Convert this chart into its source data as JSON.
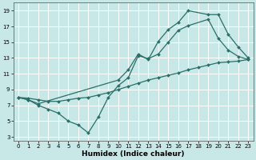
{
  "title": "",
  "xlabel": "Humidex (Indice chaleur)",
  "bg_color": "#c8e8e8",
  "grid_color": "#ffffff",
  "line_color": "#2a6e68",
  "xlim": [
    -0.5,
    23.5
  ],
  "ylim": [
    2.5,
    20
  ],
  "xticks": [
    0,
    1,
    2,
    3,
    4,
    5,
    6,
    7,
    8,
    9,
    10,
    11,
    12,
    13,
    14,
    15,
    16,
    17,
    18,
    19,
    20,
    21,
    22,
    23
  ],
  "yticks": [
    3,
    5,
    7,
    9,
    11,
    13,
    15,
    17,
    19
  ],
  "line1_x": [
    0,
    1,
    2,
    10,
    11,
    12,
    13,
    14,
    15,
    16,
    17,
    19,
    20,
    21,
    22,
    23
  ],
  "line1_y": [
    8,
    7.7,
    7.2,
    10.2,
    11.5,
    13.5,
    12.8,
    15.1,
    16.6,
    17.5,
    19.0,
    18.5,
    18.5,
    16.0,
    14.4,
    13.0
  ],
  "line2_x": [
    0,
    1,
    2,
    3,
    4,
    5,
    6,
    7,
    8,
    9,
    10,
    11,
    12,
    13,
    14,
    15,
    16,
    17,
    19,
    20,
    21,
    22,
    23
  ],
  "line2_y": [
    8.0,
    7.7,
    7.0,
    6.5,
    6.0,
    5.0,
    4.5,
    3.5,
    5.5,
    8.0,
    9.5,
    10.5,
    13.3,
    12.9,
    13.5,
    15.0,
    16.5,
    17.1,
    17.9,
    15.5,
    14.0,
    13.2,
    12.8
  ],
  "line3_x": [
    0,
    1,
    2,
    3,
    4,
    5,
    6,
    7,
    8,
    9,
    10,
    11,
    12,
    13,
    14,
    15,
    16,
    17,
    18,
    19,
    20,
    21,
    22,
    23
  ],
  "line3_y": [
    8.0,
    7.9,
    7.7,
    7.5,
    7.5,
    7.7,
    7.9,
    8.0,
    8.3,
    8.6,
    9.0,
    9.4,
    9.8,
    10.2,
    10.5,
    10.8,
    11.1,
    11.5,
    11.8,
    12.1,
    12.4,
    12.5,
    12.6,
    12.8
  ],
  "marker": "D",
  "markersize": 2,
  "linewidth": 0.9,
  "tick_fontsize": 5.0,
  "xlabel_fontsize": 6.5
}
